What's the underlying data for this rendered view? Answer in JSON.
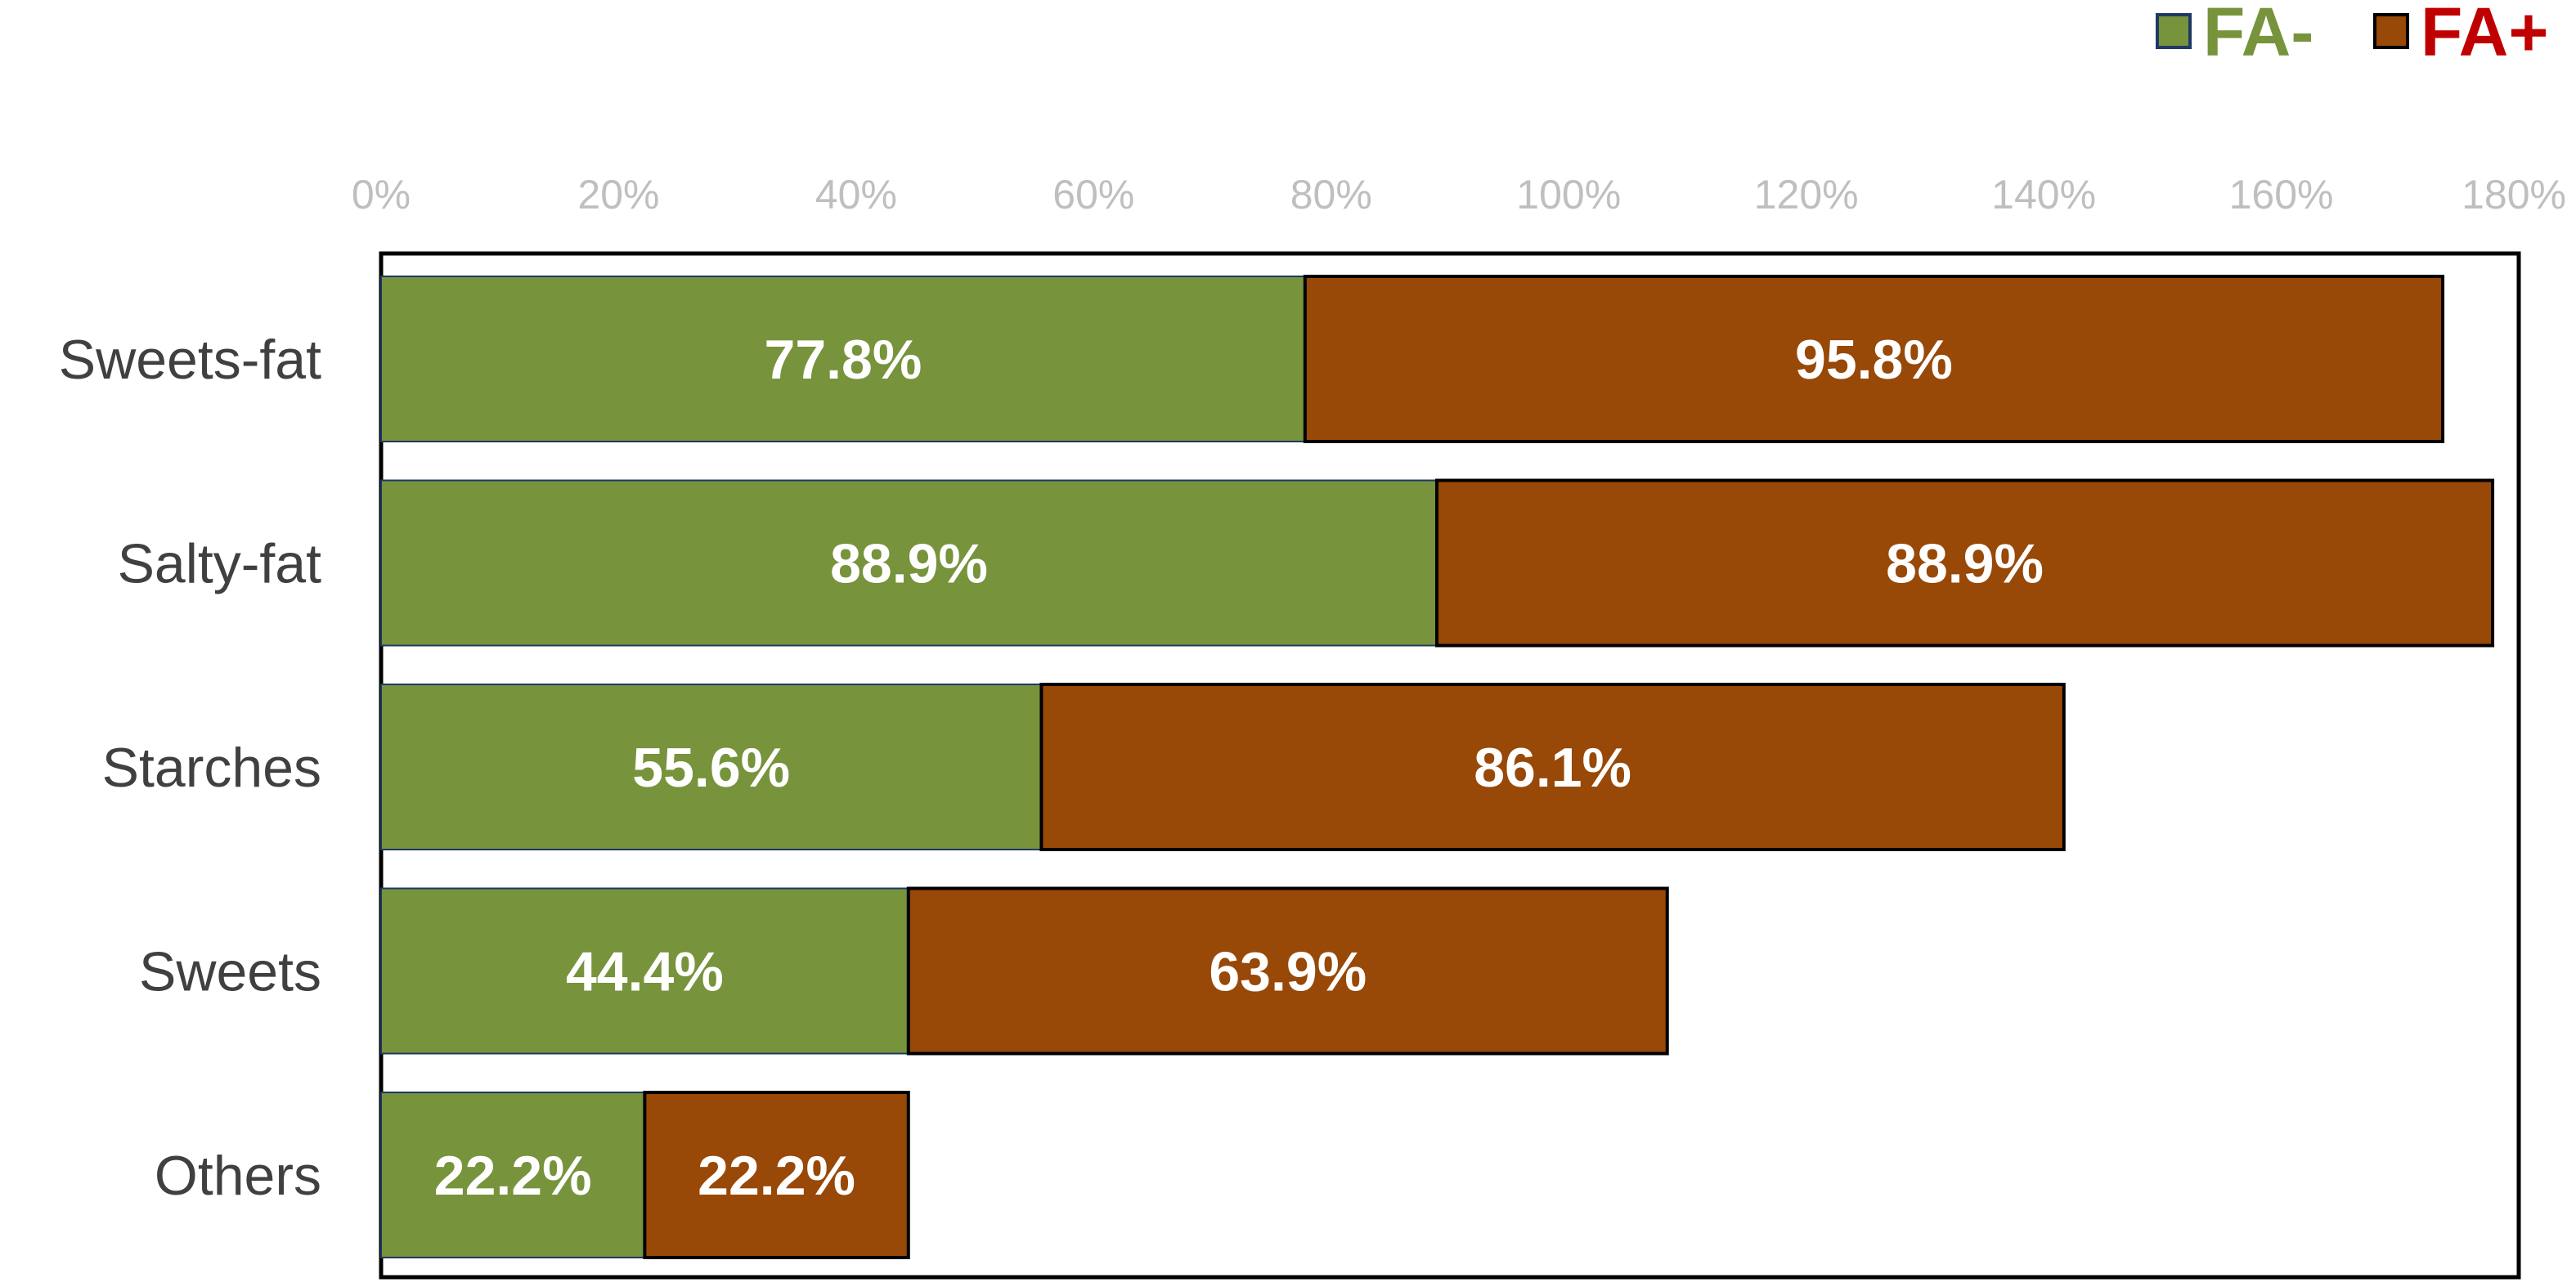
{
  "chart_data": {
    "type": "bar",
    "orientation": "horizontal",
    "stacked": true,
    "categories": [
      "Sweets-fat",
      "Salty-fat",
      "Starches",
      "Sweets",
      "Others"
    ],
    "series": [
      {
        "name": "FA-",
        "color": "#77933c",
        "label_color": "#77933c",
        "values": [
          77.8,
          88.9,
          55.6,
          44.4,
          22.2
        ],
        "labels": [
          "77.8%",
          "88.9%",
          "55.6%",
          "44.4%",
          "22.2%"
        ]
      },
      {
        "name": "FA+",
        "color": "#984807",
        "label_color": "#c00000",
        "values": [
          95.8,
          88.9,
          86.1,
          63.9,
          22.2
        ],
        "labels": [
          "95.8%",
          "88.9%",
          "86.1%",
          "63.9%",
          "22.2%"
        ]
      }
    ],
    "xlim": [
      0,
      180
    ],
    "x_ticks": [
      "0%",
      "20%",
      "40%",
      "60%",
      "80%",
      "100%",
      "120%",
      "140%",
      "160%",
      "180%"
    ],
    "x_axis_position": "top",
    "grid": false,
    "legend": "top-right",
    "title": "",
    "xlabel": "",
    "ylabel": ""
  }
}
